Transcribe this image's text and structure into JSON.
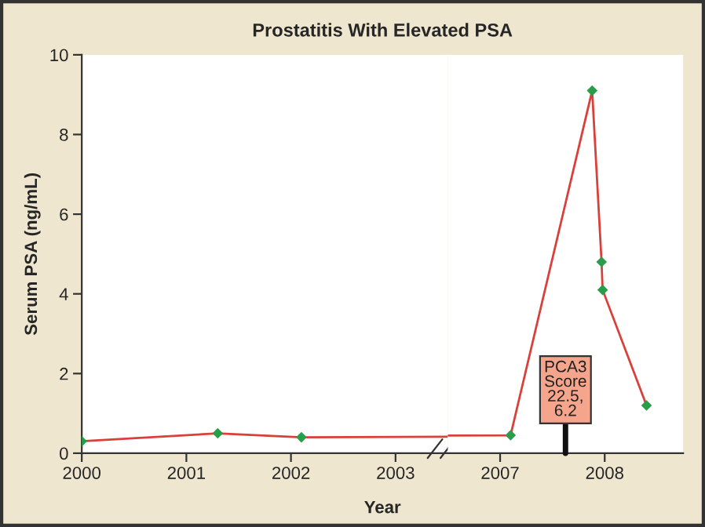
{
  "chart_data": [
    {
      "type": "line",
      "title": "Prostatitis With Elevated PSA",
      "xlabel": "Year",
      "ylabel": "Serum PSA (ng/mL)",
      "x": [
        2000.0,
        2001.3,
        2002.1
      ],
      "series": [
        {
          "color": "#d9403a",
          "colors": [
            "#2a9d4a",
            "#2a9d4a",
            "#2a9d4a"
          ],
          "values": [
            0.3,
            0.5,
            0.4
          ]
        }
      ],
      "xlim": [
        2000,
        2003.5
      ],
      "xticks": [
        2000,
        2001,
        2002,
        2003
      ],
      "ylim": [
        0,
        10
      ],
      "yticks": [
        0,
        2,
        4,
        6,
        8,
        10
      ],
      "marker": "diamond",
      "line_style": "solid"
    },
    {
      "type": "line",
      "x": [
        2007.1,
        2007.88,
        2007.97,
        2007.98,
        2008.4
      ],
      "series": [
        {
          "color": "#d9403a",
          "colors": [
            "#2a9d4a",
            "#2a9d4a",
            "#2a9d4a",
            "#2a9d4a",
            "#2a9d4a"
          ],
          "values": [
            0.45,
            9.1,
            4.8,
            4.1,
            1.2
          ]
        }
      ],
      "xlim": [
        2006.5,
        2008.75
      ],
      "xticks": [
        2007,
        2008
      ],
      "ylim": [
        0,
        10
      ],
      "tick_labels": "x",
      "marker": "diamond",
      "line_style": "solid",
      "annotations": [
        "PCA3\nScore\n22.5,\n6.2"
      ]
    }
  ]
}
